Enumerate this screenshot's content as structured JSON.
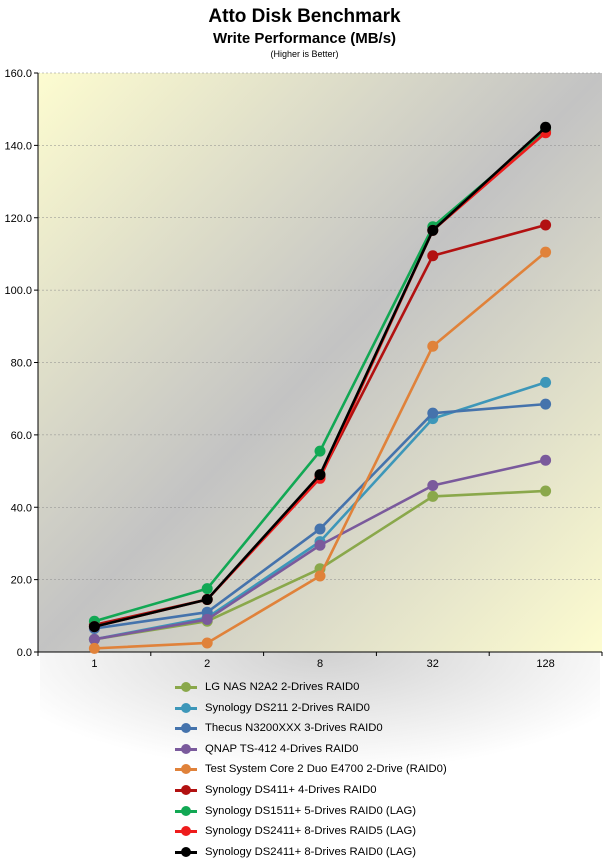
{
  "chart_data": {
    "type": "line",
    "title": "Atto Disk Benchmark",
    "subtitle": "Write Performance (MB/s)",
    "note": "(Higher is Better)",
    "categories": [
      "1",
      "2",
      "8",
      "32",
      "128"
    ],
    "ylim": [
      0,
      160
    ],
    "y_ticks": [
      "0.0",
      "20.0",
      "40.0",
      "60.0",
      "80.0",
      "100.0",
      "120.0",
      "140.0",
      "160.0"
    ],
    "grid": "horizontal dashed",
    "legend_position": "bottom",
    "series": [
      {
        "name": "LG NAS N2A2 2-Drives RAID0",
        "color": "#8aa84b",
        "values": [
          3.5,
          8.5,
          23.0,
          43.0,
          44.5
        ]
      },
      {
        "name": "Synology DS211 2-Drives RAID0",
        "color": "#3d97b9",
        "values": [
          3.5,
          9.5,
          30.5,
          64.5,
          74.5
        ]
      },
      {
        "name": "Thecus N3200XXX 3-Drives RAID0",
        "color": "#4573ac",
        "values": [
          6.5,
          11.0,
          34.0,
          66.0,
          68.5
        ]
      },
      {
        "name": "QNAP TS-412 4-Drives RAID0",
        "color": "#7a5a9c",
        "values": [
          3.5,
          9.0,
          29.5,
          46.0,
          53.0
        ]
      },
      {
        "name": "Test System Core 2 Duo E4700 2-Drive (RAID0)",
        "color": "#e0823a",
        "values": [
          1.0,
          2.5,
          21.0,
          84.5,
          110.5
        ]
      },
      {
        "name": "Synology DS411+ 4-Drives RAID0",
        "color": "#b21111",
        "values": [
          7.5,
          14.5,
          48.5,
          109.5,
          118.0
        ]
      },
      {
        "name": "Synology DS1511+ 5-Drives RAID0 (LAG)",
        "color": "#12a854",
        "values": [
          8.5,
          17.5,
          55.5,
          117.5,
          144.0
        ]
      },
      {
        "name": "Synology DS2411+ 8-Drives RAID5 (LAG)",
        "color": "#ee1c1c",
        "values": [
          7.0,
          14.5,
          48.0,
          116.5,
          143.5
        ]
      },
      {
        "name": "Synology DS2411+ 8-Drives RAID0 (LAG)",
        "color": "#000000",
        "values": [
          7.0,
          14.5,
          49.0,
          116.5,
          145.0
        ]
      }
    ]
  }
}
